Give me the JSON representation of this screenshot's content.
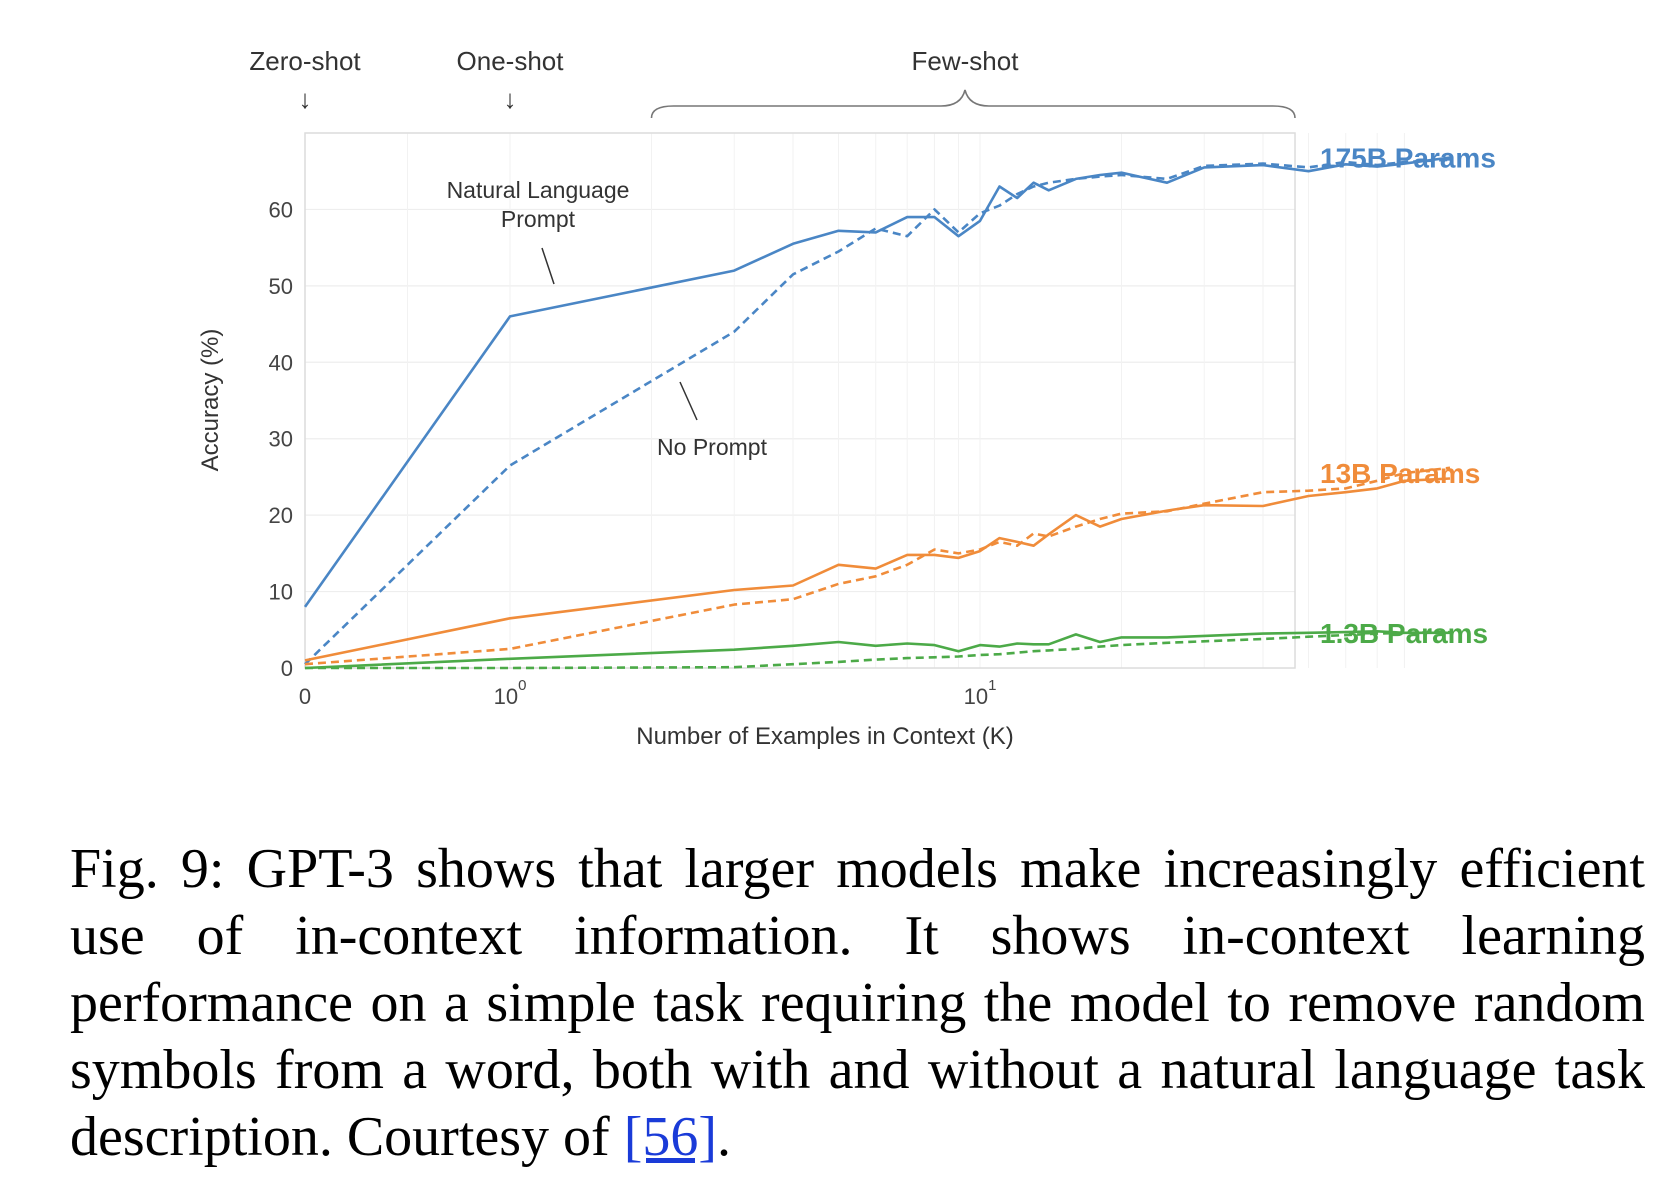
{
  "chart_data": {
    "type": "line",
    "xlabel": "Number of Examples in Context  (K)",
    "ylabel": "Accuracy (%)",
    "x_scale": "symlog",
    "x_ticks": [
      {
        "value": 0,
        "base": "0",
        "exp": ""
      },
      {
        "value": 1,
        "base": "10",
        "exp": "0"
      },
      {
        "value": 10,
        "base": "10",
        "exp": "1"
      }
    ],
    "xlim": [
      0,
      100
    ],
    "y_ticks": [
      0,
      10,
      20,
      30,
      40,
      50,
      60
    ],
    "ylim": [
      0,
      70
    ],
    "grid": true,
    "regimes": [
      {
        "label": "Zero-shot",
        "arrow": "↓",
        "x": 0
      },
      {
        "label": "One-shot",
        "arrow": "↓",
        "x": 1
      },
      {
        "label": "Few-shot",
        "x_range": [
          2,
          100
        ]
      }
    ],
    "annotations": [
      {
        "lines": [
          "Natural Language",
          "Prompt"
        ]
      },
      {
        "lines": [
          "No Prompt"
        ]
      }
    ],
    "series": [
      {
        "name": "175B Params",
        "color": "#4a86c5",
        "style": "solid",
        "x": [
          0,
          1,
          3,
          4,
          5,
          6,
          7,
          8,
          9,
          10,
          11,
          12,
          13,
          14,
          16,
          18,
          20,
          25,
          30,
          40,
          50,
          60,
          70,
          80,
          100
        ],
        "y": [
          8,
          46,
          52,
          55.5,
          57.2,
          57,
          59,
          59,
          56.5,
          58.5,
          63,
          61.5,
          63.5,
          62.5,
          64,
          64.5,
          64.8,
          63.5,
          65.5,
          65.8,
          65,
          65.9,
          65.6,
          66,
          66.8
        ]
      },
      {
        "name": "175B Params",
        "color": "#4a86c5",
        "style": "dashed",
        "x": [
          0,
          1,
          3,
          4,
          5,
          6,
          7,
          8,
          9,
          10,
          11,
          12,
          13,
          14,
          16,
          18,
          20,
          25,
          30,
          40,
          50,
          60,
          70,
          80,
          100
        ],
        "y": [
          0.5,
          26.5,
          44,
          51.5,
          54.5,
          57.5,
          56.5,
          60,
          57,
          59.5,
          60.5,
          62,
          63,
          63.5,
          64,
          64.3,
          64.5,
          64,
          65.7,
          66,
          65.5,
          66.2,
          65.8,
          66.2,
          66.5
        ]
      },
      {
        "name": "13B Params",
        "color": "#f08c3a",
        "style": "solid",
        "x": [
          0,
          1,
          3,
          4,
          5,
          6,
          7,
          8,
          9,
          10,
          11,
          12,
          13,
          14,
          16,
          18,
          20,
          25,
          30,
          40,
          50,
          60,
          70,
          80,
          100
        ],
        "y": [
          1,
          6.5,
          10.2,
          10.8,
          13.5,
          13,
          14.8,
          14.8,
          14.4,
          15.3,
          17,
          16.5,
          16,
          17.5,
          20,
          18.5,
          19.5,
          20.6,
          21.3,
          21.2,
          22.5,
          23,
          23.5,
          24.5,
          24.8
        ]
      },
      {
        "name": "13B Params",
        "color": "#f08c3a",
        "style": "dashed",
        "x": [
          0,
          1,
          3,
          4,
          5,
          6,
          7,
          8,
          9,
          10,
          11,
          12,
          13,
          14,
          16,
          18,
          20,
          25,
          30,
          40,
          50,
          60,
          70,
          80,
          100
        ],
        "y": [
          0.5,
          2.5,
          8.3,
          9,
          11,
          12,
          13.5,
          15.5,
          15,
          15.5,
          16.5,
          16,
          17.6,
          17.2,
          18.5,
          19.5,
          20.2,
          20.5,
          21.5,
          23,
          23.2,
          23.5,
          24.5,
          25.5,
          26.2
        ]
      },
      {
        "name": "1.3B Params",
        "color": "#4caa48",
        "style": "solid",
        "x": [
          0,
          1,
          3,
          4,
          5,
          6,
          7,
          8,
          9,
          10,
          11,
          12,
          13,
          14,
          16,
          18,
          20,
          25,
          30,
          40,
          50,
          60,
          70,
          80,
          100
        ],
        "y": [
          0,
          1.2,
          2.4,
          2.9,
          3.4,
          2.9,
          3.2,
          3,
          2.2,
          3,
          2.8,
          3.2,
          3.1,
          3.1,
          4.4,
          3.4,
          4,
          4,
          4.2,
          4.5,
          4.6,
          4.7,
          4.8,
          4.6,
          4.6
        ]
      },
      {
        "name": "1.3B Params",
        "color": "#4caa48",
        "style": "dashed",
        "x": [
          0,
          1,
          3,
          4,
          5,
          6,
          7,
          8,
          9,
          10,
          11,
          12,
          13,
          14,
          16,
          18,
          20,
          25,
          30,
          40,
          50,
          60,
          70,
          80,
          100
        ],
        "y": [
          0,
          0,
          0.1,
          0.5,
          0.8,
          1.1,
          1.3,
          1.4,
          1.5,
          1.7,
          1.8,
          2,
          2.2,
          2.3,
          2.5,
          2.8,
          3,
          3.3,
          3.5,
          3.8,
          4.1,
          4.3,
          4.5,
          4.6,
          4.7
        ]
      }
    ],
    "series_labels": [
      {
        "text": "175B Params",
        "color": "#4a86c5",
        "y": 66.8
      },
      {
        "text": "13B Params",
        "color": "#f08c3a",
        "y": 25.5
      },
      {
        "text": "1.3B Params",
        "color": "#4caa48",
        "y": 4.6
      }
    ]
  },
  "caption": {
    "text": "Fig. 9: GPT-3 shows that larger models make increasingly efficient use of in-context information. It shows in-context learning performance on a simple task requiring the model to remove random symbols from a word, both with and without a natural language task description. Courtesy of ",
    "ref": "[56]",
    "end": "."
  }
}
